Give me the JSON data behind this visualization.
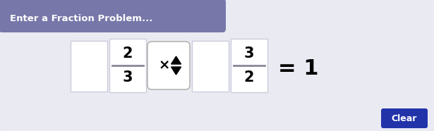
{
  "bg_color": "#eaeaf2",
  "header_color": "#7777aa",
  "header_text": "Enter a Fraction Problem...",
  "header_text_color": "#ffffff",
  "header_fontsize": 9.5,
  "body_bg": "#eaeaf2",
  "frac1_num": "2",
  "frac1_den": "3",
  "frac2_num": "3",
  "frac2_den": "2",
  "result_text": "= 1",
  "clear_btn_color": "#2233aa",
  "clear_btn_text": "Clear",
  "clear_btn_text_color": "#ffffff",
  "border_color": "#bbbbdd",
  "box_edge_color": "#ccccdd",
  "op_edge_color": "#aaaaaa",
  "frac_line_color": "#888899"
}
